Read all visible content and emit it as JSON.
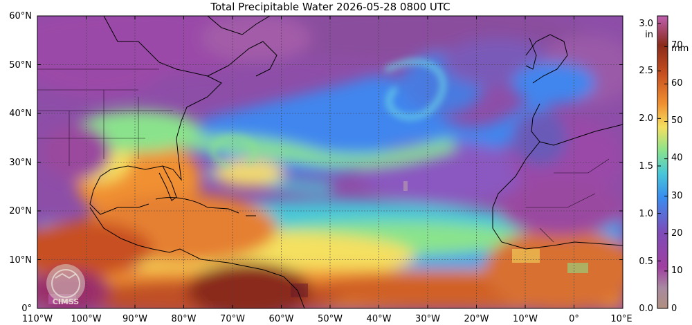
{
  "title": "Total Precipitable Water  2026-05-28 0800 UTC",
  "logo_text": "CIMSS",
  "map": {
    "lon_range": [
      -110,
      10
    ],
    "lat_range": [
      0,
      60
    ],
    "lon_ticks": [
      "110°W",
      "100°W",
      "90°W",
      "80°W",
      "70°W",
      "60°W",
      "50°W",
      "40°W",
      "30°W",
      "20°W",
      "10°W",
      "0°",
      "10°E"
    ],
    "lat_ticks": [
      "0°",
      "10°N",
      "20°N",
      "30°N",
      "40°N",
      "50°N",
      "60°N"
    ]
  },
  "colorbar": {
    "left_unit": "in",
    "right_unit": "mm",
    "inch_ticks": [
      "0.0",
      "0.5",
      "1.0",
      "1.5",
      "2.0",
      "2.5",
      "3.0"
    ],
    "mm_ticks": [
      "0",
      "10",
      "20",
      "30",
      "40",
      "50",
      "60",
      "70"
    ],
    "colors": {
      "c0": "#b09080",
      "c1": "#a040a0",
      "c2": "#7d4bb8",
      "c3": "#3a8df0",
      "c4": "#46c6d8",
      "c5": "#8ae38c",
      "c6": "#f5e060",
      "c7": "#f09030",
      "c8": "#c85020",
      "c9": "#8a2a1a",
      "c10": "#c060b0"
    }
  }
}
